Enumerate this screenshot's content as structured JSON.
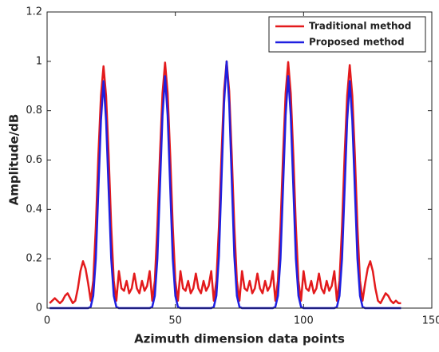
{
  "chart_data": {
    "type": "line",
    "xlabel": "Azimuth dimension data points",
    "ylabel": "Amplitude/dB",
    "x": [
      1,
      2,
      3,
      4,
      5,
      6,
      7,
      8,
      9,
      10,
      11,
      12,
      13,
      14,
      15,
      16,
      17,
      18,
      19,
      20,
      21,
      22,
      23,
      24,
      25,
      26,
      27,
      28,
      29,
      30,
      31,
      32,
      33,
      34,
      35,
      36,
      37,
      38,
      39,
      40,
      41,
      42,
      43,
      44,
      45,
      46,
      47,
      48,
      49,
      50,
      51,
      52,
      53,
      54,
      55,
      56,
      57,
      58,
      59,
      60,
      61,
      62,
      63,
      64,
      65,
      66,
      67,
      68,
      69,
      70,
      71,
      72,
      73,
      74,
      75,
      76,
      77,
      78,
      79,
      80,
      81,
      82,
      83,
      84,
      85,
      86,
      87,
      88,
      89,
      90,
      91,
      92,
      93,
      94,
      95,
      96,
      97,
      98,
      99,
      100,
      101,
      102,
      103,
      104,
      105,
      106,
      107,
      108,
      109,
      110,
      111,
      112,
      113,
      114,
      115,
      116,
      117,
      118,
      119,
      120,
      121,
      122,
      123,
      124,
      125,
      126,
      127,
      128,
      129,
      130,
      131,
      132,
      133,
      134,
      135,
      136,
      137,
      138
    ],
    "series": [
      {
        "name": "Traditional method",
        "color": "#e31a1c",
        "values": [
          0.02,
          0.03,
          0.04,
          0.03,
          0.02,
          0.03,
          0.05,
          0.06,
          0.04,
          0.02,
          0.03,
          0.08,
          0.15,
          0.19,
          0.16,
          0.1,
          0.03,
          0.11,
          0.33,
          0.62,
          0.86,
          0.98,
          0.86,
          0.62,
          0.33,
          0.11,
          0.03,
          0.15,
          0.08,
          0.07,
          0.11,
          0.06,
          0.08,
          0.14,
          0.08,
          0.06,
          0.11,
          0.07,
          0.09,
          0.15,
          0.03,
          0.11,
          0.33,
          0.62,
          0.87,
          0.995,
          0.87,
          0.62,
          0.33,
          0.11,
          0.03,
          0.15,
          0.08,
          0.07,
          0.11,
          0.06,
          0.08,
          0.14,
          0.08,
          0.06,
          0.11,
          0.07,
          0.09,
          0.15,
          0.03,
          0.11,
          0.33,
          0.62,
          0.88,
          1.0,
          0.88,
          0.62,
          0.33,
          0.11,
          0.03,
          0.15,
          0.08,
          0.07,
          0.11,
          0.06,
          0.08,
          0.14,
          0.08,
          0.06,
          0.11,
          0.07,
          0.09,
          0.15,
          0.03,
          0.11,
          0.33,
          0.62,
          0.87,
          0.997,
          0.87,
          0.62,
          0.33,
          0.11,
          0.03,
          0.15,
          0.08,
          0.07,
          0.11,
          0.06,
          0.08,
          0.14,
          0.08,
          0.06,
          0.11,
          0.07,
          0.09,
          0.15,
          0.03,
          0.11,
          0.33,
          0.62,
          0.86,
          0.985,
          0.86,
          0.62,
          0.33,
          0.11,
          0.03,
          0.1,
          0.16,
          0.19,
          0.15,
          0.08,
          0.03,
          0.02,
          0.04,
          0.06,
          0.05,
          0.03,
          0.02,
          0.03,
          0.02,
          0.02
        ]
      },
      {
        "name": "Proposed method",
        "color": "#1f1fe0",
        "values": [
          0,
          0,
          0,
          0,
          0,
          0,
          0,
          0,
          0,
          0,
          0,
          0,
          0,
          0,
          0,
          0,
          0.005,
          0.05,
          0.2,
          0.48,
          0.76,
          0.92,
          0.76,
          0.48,
          0.2,
          0.05,
          0.005,
          0,
          0,
          0,
          0,
          0,
          0,
          0,
          0,
          0,
          0,
          0,
          0,
          0,
          0.005,
          0.05,
          0.2,
          0.49,
          0.78,
          0.94,
          0.78,
          0.49,
          0.2,
          0.05,
          0.005,
          0,
          0,
          0,
          0,
          0,
          0,
          0,
          0,
          0,
          0,
          0,
          0,
          0,
          0.005,
          0.05,
          0.21,
          0.52,
          0.83,
          1.0,
          0.83,
          0.52,
          0.21,
          0.05,
          0.005,
          0,
          0,
          0,
          0,
          0,
          0,
          0,
          0,
          0,
          0,
          0,
          0,
          0,
          0.005,
          0.05,
          0.2,
          0.49,
          0.78,
          0.94,
          0.78,
          0.49,
          0.2,
          0.05,
          0.005,
          0,
          0,
          0,
          0,
          0,
          0,
          0,
          0,
          0,
          0,
          0,
          0,
          0,
          0.005,
          0.05,
          0.2,
          0.48,
          0.76,
          0.92,
          0.76,
          0.48,
          0.2,
          0.05,
          0.005,
          0,
          0,
          0,
          0,
          0,
          0,
          0,
          0,
          0,
          0,
          0,
          0,
          0,
          0,
          0
        ]
      }
    ],
    "xlim": [
      0,
      150
    ],
    "xticks": [
      0,
      50,
      100,
      150
    ],
    "ylim": [
      0,
      1.2
    ],
    "yticks": [
      0,
      0.2,
      0.4,
      0.6,
      0.8,
      1,
      1.2
    ],
    "legend": "northeast"
  }
}
